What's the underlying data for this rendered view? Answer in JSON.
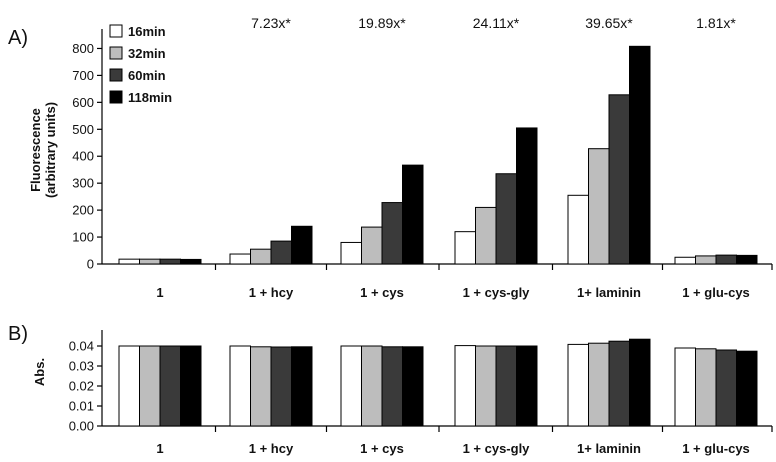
{
  "chart_data": [
    {
      "panel": "A)",
      "type": "bar",
      "ylabel": [
        "Fluorescence",
        "(arbitrary units)"
      ],
      "ylim": [
        0,
        850
      ],
      "yticks": [
        0,
        100,
        200,
        300,
        400,
        500,
        600,
        700,
        800
      ],
      "categories": [
        "1",
        "1 + hcy",
        "1 + cys",
        "1 + cys-gly",
        "1+ laminin",
        "1 + glu-cys"
      ],
      "annotations": [
        "",
        "7.23x*",
        "19.89x*",
        "24.11x*",
        "39.65x*",
        "1.81x*"
      ],
      "legend_position": "top-left",
      "series": [
        {
          "name": "16min",
          "color": "#ffffff",
          "values": [
            18,
            37,
            80,
            120,
            255,
            25
          ]
        },
        {
          "name": "32min",
          "color": "#bdbdbd",
          "values": [
            18,
            55,
            137,
            210,
            428,
            30
          ]
        },
        {
          "name": "60min",
          "color": "#3a3a3a",
          "values": [
            18,
            85,
            228,
            335,
            628,
            33
          ]
        },
        {
          "name": "118min",
          "color": "#000000",
          "values": [
            17,
            140,
            367,
            505,
            808,
            32
          ]
        }
      ]
    },
    {
      "panel": "B)",
      "type": "bar",
      "ylabel": [
        "Abs."
      ],
      "ylim": [
        0,
        0.045
      ],
      "yticks": [
        "0.00",
        "0.01",
        "0.02",
        "0.03",
        "0.04"
      ],
      "categories": [
        "1",
        "1 + hcy",
        "1 + cys",
        "1 + cys-gly",
        "1+ laminin",
        "1 + glu-cys"
      ],
      "series": [
        {
          "name": "16min",
          "color": "#ffffff",
          "values": [
            0.04,
            0.04,
            0.04,
            0.0402,
            0.0408,
            0.039
          ]
        },
        {
          "name": "32min",
          "color": "#bdbdbd",
          "values": [
            0.04,
            0.0396,
            0.04,
            0.04,
            0.0414,
            0.0386
          ]
        },
        {
          "name": "60min",
          "color": "#3a3a3a",
          "values": [
            0.04,
            0.0395,
            0.0396,
            0.04,
            0.0424,
            0.038
          ]
        },
        {
          "name": "118min",
          "color": "#000000",
          "values": [
            0.04,
            0.0396,
            0.0396,
            0.04,
            0.0434,
            0.0374
          ]
        }
      ]
    }
  ]
}
